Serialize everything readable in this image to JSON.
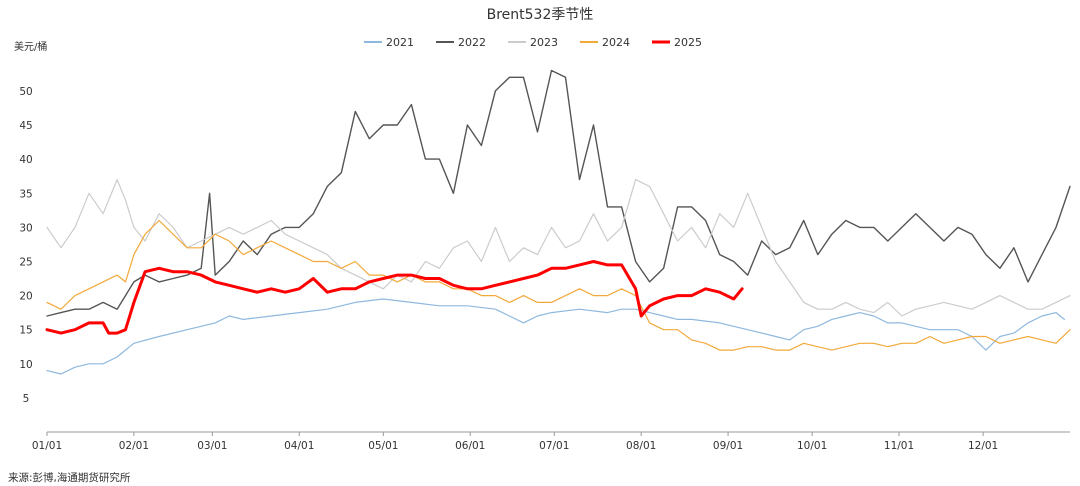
{
  "chart_data": {
    "type": "line",
    "title": "Brent532季节性",
    "ylabel": "美元/桶",
    "xlabel": "",
    "source": "来源:彭博,海通期货研究所",
    "ylim": [
      0,
      56
    ],
    "yticks": [
      5,
      10,
      15,
      20,
      25,
      30,
      35,
      40,
      45,
      50
    ],
    "xlim": [
      0,
      365
    ],
    "x_ticks": [
      {
        "label": "01/01",
        "day": 0
      },
      {
        "label": "02/01",
        "day": 31
      },
      {
        "label": "03/01",
        "day": 59
      },
      {
        "label": "04/01",
        "day": 90
      },
      {
        "label": "05/01",
        "day": 120
      },
      {
        "label": "06/01",
        "day": 151
      },
      {
        "label": "07/01",
        "day": 181
      },
      {
        "label": "08/01",
        "day": 212
      },
      {
        "label": "09/01",
        "day": 243
      },
      {
        "label": "10/01",
        "day": 273
      },
      {
        "label": "11/01",
        "day": 304
      },
      {
        "label": "12/01",
        "day": 334
      }
    ],
    "legend_position": "top-center",
    "grid": false,
    "series": [
      {
        "name": "2021",
        "color": "#8fb8de",
        "width": 1.2,
        "x": [
          0,
          5,
          10,
          15,
          20,
          25,
          28,
          31,
          40,
          50,
          60,
          65,
          70,
          80,
          90,
          100,
          110,
          120,
          130,
          140,
          150,
          160,
          165,
          170,
          175,
          180,
          190,
          200,
          205,
          210,
          215,
          220,
          225,
          230,
          240,
          250,
          255,
          260,
          265,
          270,
          275,
          280,
          285,
          290,
          295,
          300,
          305,
          310,
          315,
          320,
          325,
          330,
          335,
          340,
          345,
          350,
          355,
          360,
          363
        ],
        "y": [
          9,
          8.5,
          9.5,
          10,
          10,
          11,
          12,
          13,
          14,
          15,
          16,
          17,
          16.5,
          17,
          17.5,
          18,
          19,
          19.5,
          19,
          18.5,
          18.5,
          18,
          17,
          16,
          17,
          17.5,
          18,
          17.5,
          18,
          18,
          17.5,
          17,
          16.5,
          16.5,
          16,
          15,
          14.5,
          14,
          13.5,
          15,
          15.5,
          16.5,
          17,
          17.5,
          17,
          16,
          16,
          15.5,
          15,
          15,
          15,
          14,
          12,
          14,
          14.5,
          16,
          17,
          17.5,
          16.5
        ]
      },
      {
        "name": "2022",
        "color": "#555555",
        "width": 1.4,
        "x": [
          0,
          5,
          10,
          15,
          20,
          25,
          28,
          31,
          35,
          40,
          45,
          50,
          55,
          58,
          60,
          65,
          70,
          75,
          80,
          85,
          90,
          95,
          100,
          105,
          110,
          115,
          120,
          125,
          130,
          135,
          140,
          145,
          150,
          155,
          160,
          165,
          170,
          175,
          180,
          185,
          190,
          195,
          200,
          205,
          210,
          215,
          220,
          225,
          230,
          235,
          240,
          245,
          250,
          255,
          260,
          265,
          270,
          275,
          280,
          285,
          290,
          295,
          300,
          305,
          310,
          315,
          320,
          325,
          330,
          335,
          340,
          345,
          350,
          355,
          360,
          365
        ],
        "y": [
          17,
          17.5,
          18,
          18,
          19,
          18,
          20,
          22,
          23,
          22,
          22.5,
          23,
          24,
          35,
          23,
          25,
          28,
          26,
          29,
          30,
          30,
          32,
          36,
          38,
          47,
          43,
          45,
          45,
          48,
          40,
          40,
          35,
          45,
          42,
          50,
          52,
          52,
          44,
          53,
          52,
          37,
          45,
          33,
          33,
          25,
          22,
          24,
          33,
          33,
          31,
          26,
          25,
          23,
          28,
          26,
          27,
          31,
          26,
          29,
          31,
          30,
          30,
          28,
          30,
          32,
          30,
          28,
          30,
          29,
          26,
          24,
          27,
          22,
          26,
          30,
          36
        ]
      },
      {
        "name": "2023",
        "color": "#cccccc",
        "width": 1.2,
        "x": [
          0,
          5,
          10,
          15,
          20,
          25,
          28,
          31,
          35,
          40,
          45,
          50,
          55,
          60,
          65,
          70,
          75,
          80,
          85,
          90,
          95,
          100,
          105,
          110,
          115,
          120,
          125,
          130,
          135,
          140,
          145,
          150,
          155,
          160,
          165,
          170,
          175,
          180,
          185,
          190,
          195,
          200,
          205,
          210,
          215,
          220,
          225,
          230,
          235,
          240,
          245,
          250,
          255,
          260,
          265,
          270,
          275,
          280,
          285,
          290,
          295,
          300,
          305,
          310,
          315,
          320,
          325,
          330,
          335,
          340,
          345,
          350,
          355,
          360,
          365
        ],
        "y": [
          30,
          27,
          30,
          35,
          32,
          37,
          34,
          30,
          28,
          32,
          30,
          27,
          28,
          29,
          30,
          29,
          30,
          31,
          29,
          28,
          27,
          26,
          24,
          23,
          22,
          21,
          23,
          22,
          25,
          24,
          27,
          28,
          25,
          30,
          25,
          27,
          26,
          30,
          27,
          28,
          32,
          28,
          30,
          37,
          36,
          32,
          28,
          30,
          27,
          32,
          30,
          35,
          30,
          25,
          22,
          19,
          18,
          18,
          19,
          18,
          17.5,
          19,
          17,
          18,
          18.5,
          19,
          18.5,
          18,
          19,
          20,
          19,
          18,
          18,
          19,
          20
        ]
      },
      {
        "name": "2024",
        "color": "#f2a93b",
        "width": 1.2,
        "x": [
          0,
          5,
          10,
          15,
          20,
          25,
          28,
          31,
          35,
          40,
          45,
          50,
          55,
          60,
          65,
          70,
          75,
          80,
          85,
          90,
          95,
          100,
          105,
          110,
          115,
          120,
          125,
          130,
          135,
          140,
          145,
          150,
          155,
          160,
          165,
          170,
          175,
          180,
          185,
          190,
          195,
          200,
          205,
          210,
          215,
          220,
          225,
          230,
          235,
          240,
          245,
          250,
          255,
          260,
          265,
          270,
          275,
          280,
          285,
          290,
          295,
          300,
          305,
          310,
          315,
          320,
          325,
          330,
          335,
          340,
          345,
          350,
          355,
          360,
          365
        ],
        "y": [
          19,
          18,
          20,
          21,
          22,
          23,
          22,
          26,
          29,
          31,
          29,
          27,
          27,
          29,
          28,
          26,
          27,
          28,
          27,
          26,
          25,
          25,
          24,
          25,
          23,
          23,
          22,
          23,
          22,
          22,
          21,
          21,
          20,
          20,
          19,
          20,
          19,
          19,
          20,
          21,
          20,
          20,
          21,
          20,
          16,
          15,
          15,
          13.5,
          13,
          12,
          12,
          12.5,
          12.5,
          12,
          12,
          13,
          12.5,
          12,
          12.5,
          13,
          13,
          12.5,
          13,
          13,
          14,
          13,
          13.5,
          14,
          14,
          13,
          13.5,
          14,
          13.5,
          13,
          15
        ]
      },
      {
        "name": "2025",
        "color": "#ff0000",
        "width": 3,
        "x": [
          0,
          5,
          10,
          15,
          20,
          22,
          25,
          28,
          31,
          35,
          40,
          45,
          50,
          55,
          60,
          65,
          70,
          75,
          80,
          85,
          90,
          95,
          100,
          105,
          110,
          115,
          120,
          125,
          130,
          135,
          140,
          145,
          150,
          155,
          160,
          165,
          170,
          175,
          180,
          185,
          190,
          195,
          200,
          205,
          210,
          212,
          215,
          220,
          225,
          230,
          235,
          240,
          245,
          248
        ],
        "y": [
          15,
          14.5,
          15,
          16,
          16,
          14.5,
          14.5,
          15,
          19,
          23.5,
          24,
          23.5,
          23.5,
          23,
          22,
          21.5,
          21,
          20.5,
          21,
          20.5,
          21,
          22.5,
          20.5,
          21,
          21,
          22,
          22.5,
          23,
          23,
          22.5,
          22.5,
          21.5,
          21,
          21,
          21.5,
          22,
          22.5,
          23,
          24,
          24,
          24.5,
          25,
          24.5,
          24.5,
          21,
          17,
          18.5,
          19.5,
          20,
          20,
          21,
          20.5,
          19.5,
          21
        ]
      }
    ]
  }
}
